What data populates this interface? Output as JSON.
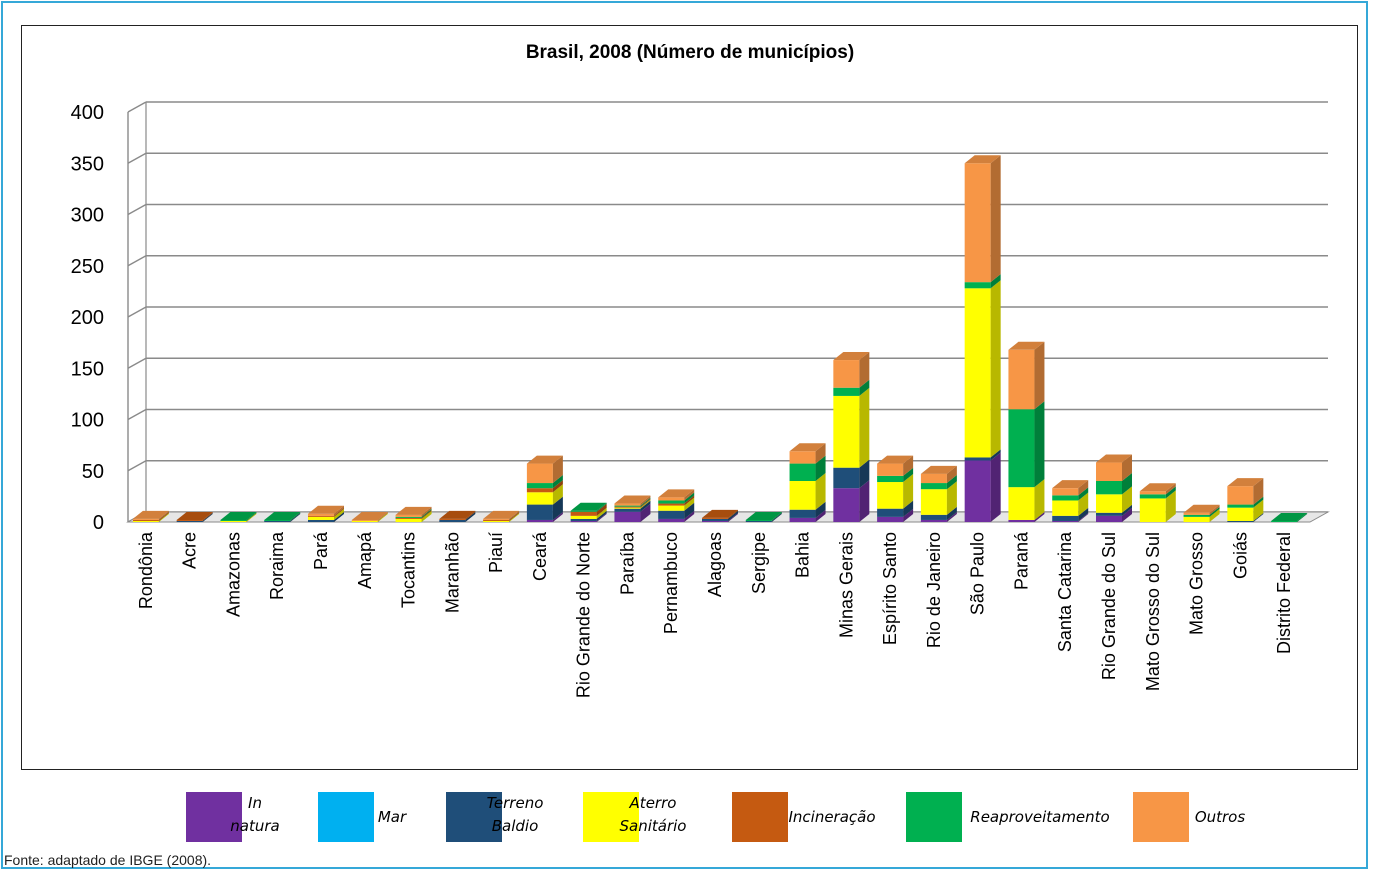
{
  "chart_data": {
    "type": "bar",
    "stacked": true,
    "three_d": true,
    "title": "Brasil, 2008 (Número de municípios)",
    "xlabel": "",
    "ylabel": "",
    "ylim": [
      0,
      400
    ],
    "yticks": [
      "0",
      "50",
      "100",
      "150",
      "200",
      "250",
      "300",
      "350",
      "400"
    ],
    "grid": true,
    "legend_position": "bottom",
    "categories": [
      "Rondônia",
      "Acre",
      "Amazonas",
      "Roraima",
      "Pará",
      "Amapá",
      "Tocantins",
      "Maranhão",
      "Piauí",
      "Ceará",
      "Rio Grande do Norte",
      "Paraíba",
      "Pernambuco",
      "Alagoas",
      "Sergipe",
      "Bahia",
      "Minas Gerais",
      "Espírito Santo",
      "Rio de Janeiro",
      "São Paulo",
      "Paraná",
      "Santa Catarina",
      "Rio Grande do Sul",
      "Mato Grosso do Sul",
      "Mato Grosso",
      "Goiás",
      "Distrito Federal"
    ],
    "series": [
      {
        "name": "In natura",
        "color": "#7030a0",
        "values": [
          0,
          0,
          0,
          0,
          0,
          0,
          0,
          0,
          0,
          2,
          1,
          10,
          3,
          1,
          0,
          4,
          33,
          5,
          2,
          60,
          2,
          1,
          6,
          0,
          0,
          0,
          0
        ]
      },
      {
        "name": "Mar",
        "color": "#00b0f0",
        "values": [
          0,
          0,
          0,
          0,
          0,
          0,
          0,
          0,
          0,
          0,
          0,
          0,
          0,
          0,
          0,
          0,
          0,
          0,
          0,
          0,
          0,
          0,
          0,
          0,
          0,
          0,
          0
        ]
      },
      {
        "name": "Terreno Baldio",
        "color": "#1f4e79",
        "values": [
          0,
          1,
          0,
          1,
          2,
          0,
          0,
          2,
          0,
          15,
          2,
          3,
          8,
          2,
          1,
          8,
          20,
          8,
          5,
          3,
          0,
          5,
          3,
          0,
          0,
          1,
          0
        ]
      },
      {
        "name": "Aterro Sanitário",
        "color": "#ffff00",
        "values": [
          1,
          0,
          1,
          0,
          3,
          1,
          3,
          0,
          1,
          12,
          3,
          1,
          5,
          0,
          0,
          28,
          70,
          26,
          25,
          165,
          32,
          15,
          18,
          23,
          5,
          13,
          0
        ]
      },
      {
        "name": "Incineração",
        "color": "#c55a11",
        "values": [
          1,
          1,
          0,
          0,
          1,
          0,
          1,
          1,
          1,
          4,
          4,
          1,
          2,
          1,
          0,
          0,
          0,
          0,
          0,
          0,
          0,
          0,
          0,
          0,
          0,
          0,
          0
        ]
      },
      {
        "name": "Reaproveitamento",
        "color": "#00b050",
        "values": [
          0,
          0,
          1,
          1,
          0,
          0,
          1,
          0,
          0,
          5,
          1,
          1,
          3,
          0,
          1,
          17,
          8,
          6,
          6,
          6,
          76,
          5,
          13,
          4,
          2,
          3,
          1
        ]
      },
      {
        "name": "Outros",
        "color": "#f79646",
        "values": [
          1,
          0,
          0,
          0,
          2,
          1,
          2,
          0,
          1,
          19,
          0,
          2,
          3,
          0,
          0,
          12,
          27,
          12,
          9,
          116,
          58,
          7,
          18,
          3,
          2,
          18,
          0
        ]
      }
    ]
  },
  "legend": {
    "items": [
      {
        "label_lines": [
          "In",
          "natura"
        ],
        "color": "#7030a0"
      },
      {
        "label_lines": [
          "Mar"
        ],
        "color": "#00b0f0"
      },
      {
        "label_lines": [
          "Terreno",
          "Baldio"
        ],
        "color": "#1f4e79"
      },
      {
        "label_lines": [
          "Aterro",
          "Sanitário"
        ],
        "color": "#ffff00"
      },
      {
        "label_lines": [
          "Incineração"
        ],
        "color": "#c55a11"
      },
      {
        "label_lines": [
          "Reaproveitamento"
        ],
        "color": "#00b050"
      },
      {
        "label_lines": [
          "Outros"
        ],
        "color": "#f79646"
      }
    ]
  },
  "source_note": "Fonte: adaptado de IBGE (2008)."
}
